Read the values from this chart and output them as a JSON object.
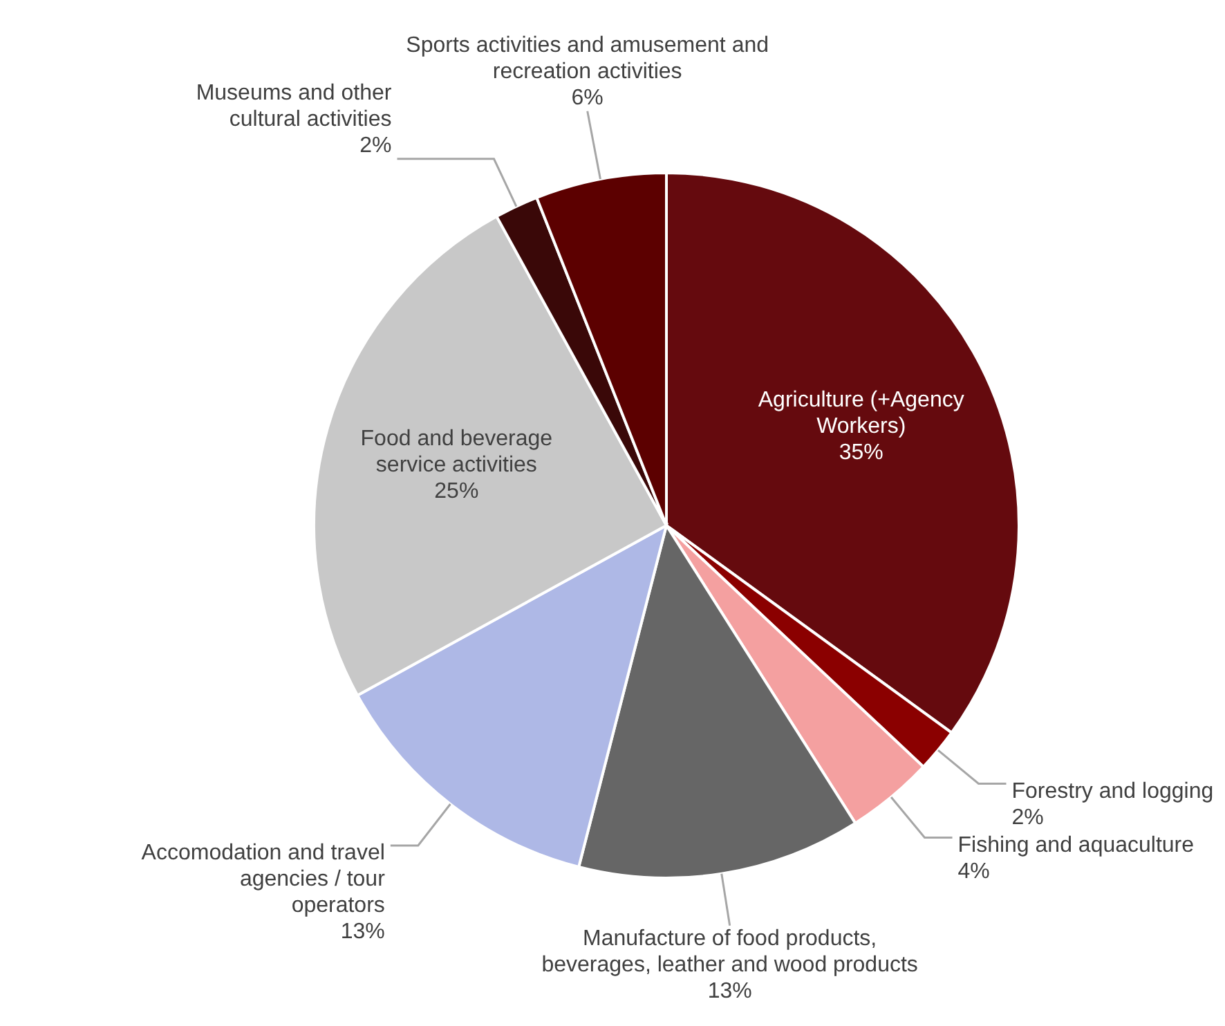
{
  "chart_data": {
    "type": "pie",
    "categories": [
      "Agriculture (+Agency Workers)",
      "Forestry and logging",
      "Fishing and aquaculture",
      "Manufacture of food products, beverages, leather and wood products",
      "Accomodation and travel agencies / tour operators",
      "Food and beverage service activities",
      "Museums and other cultural activities",
      "Sports activities and amusement and recreation activities"
    ],
    "values": [
      35,
      2,
      4,
      13,
      13,
      25,
      2,
      6
    ],
    "value_labels": [
      "35%",
      "2%",
      "4%",
      "13%",
      "13%",
      "25%",
      "2%",
      "6%"
    ],
    "colors": [
      "#650a0e",
      "#8b0000",
      "#f4a0a0",
      "#666666",
      "#aeb8e6",
      "#c8c8c8",
      "#3a0808",
      "#5c0000"
    ]
  }
}
